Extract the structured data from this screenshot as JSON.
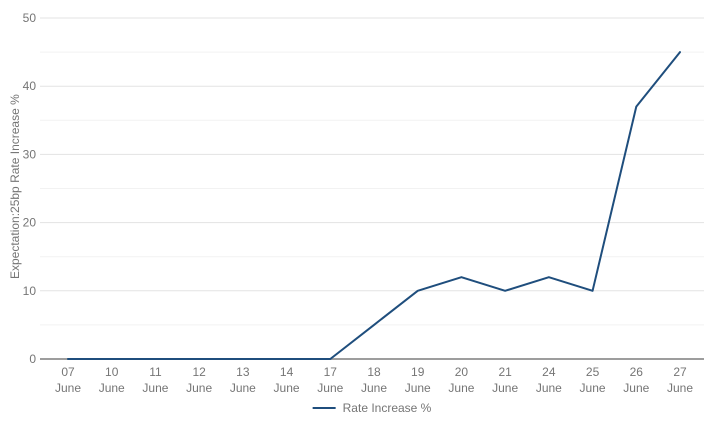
{
  "chart_data": {
    "type": "line",
    "title": "",
    "xlabel": "",
    "ylabel": "Expectation:25bp Rate Increase %",
    "categories": [
      "07 June",
      "10 June",
      "11 June",
      "12 June",
      "13 June",
      "14 June",
      "17 June",
      "18 June",
      "19 June",
      "20 June",
      "21 June",
      "24 June",
      "25 June",
      "26 June",
      "27 June"
    ],
    "series": [
      {
        "name": "Rate Increase %",
        "values": [
          0,
          0,
          0,
          0,
          0,
          0,
          0,
          5,
          10,
          12,
          10,
          12,
          10,
          37,
          45
        ]
      }
    ],
    "ylim": [
      0,
      50
    ],
    "y_major_step": 10,
    "y_minor_step": 5,
    "grid": true,
    "legend_position": "bottom-center",
    "colors": {
      "line": "#1f4e7d",
      "grid_major": "#e3e3e3",
      "grid_minor": "#f2f2f2",
      "axis": "#9d9d9d",
      "text": "#757575",
      "background": "#ffffff"
    }
  }
}
